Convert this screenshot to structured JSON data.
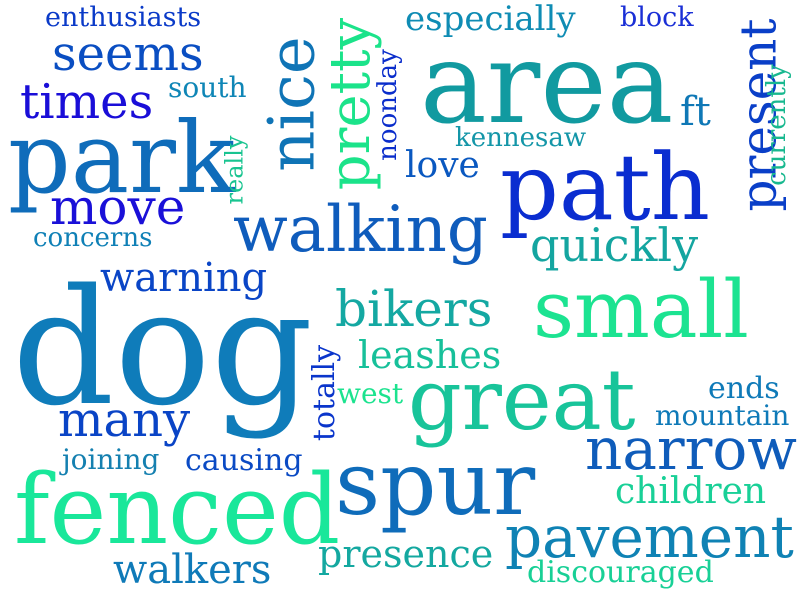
{
  "words": [
    {
      "text": "enthusiasts",
      "color": "#0a3ac8"
    },
    {
      "text": "especially",
      "color": "#0f8cb4"
    },
    {
      "text": "block",
      "color": "#1a2fd6"
    },
    {
      "text": "seems",
      "color": "#0a4ec2"
    },
    {
      "text": "nice",
      "color": "#0f74b6"
    },
    {
      "text": "pretty",
      "color": "#1be38a"
    },
    {
      "text": "noonday",
      "color": "#0a2dcb"
    },
    {
      "text": "area",
      "color": "#119aa0"
    },
    {
      "text": "present",
      "color": "#0a3fc8"
    },
    {
      "text": "currently",
      "color": "#18b88f"
    },
    {
      "text": "times",
      "color": "#1a0ed8"
    },
    {
      "text": "south",
      "color": "#0f86b6"
    },
    {
      "text": "ft",
      "color": "#0f78b6"
    },
    {
      "text": "kennesaw",
      "color": "#1496a8"
    },
    {
      "text": "park",
      "color": "#0f6cba"
    },
    {
      "text": "really",
      "color": "#19c490"
    },
    {
      "text": "love",
      "color": "#0a58c0"
    },
    {
      "text": "path",
      "color": "#0a2dd0"
    },
    {
      "text": "move",
      "color": "#1a10d8"
    },
    {
      "text": "walking",
      "color": "#0f5cbc"
    },
    {
      "text": "quickly",
      "color": "#14a5a0"
    },
    {
      "text": "concerns",
      "color": "#0f80b6"
    },
    {
      "text": "warning",
      "color": "#0a45c6"
    },
    {
      "text": "bikers",
      "color": "#14a8a2"
    },
    {
      "text": "small",
      "color": "#1ce391"
    },
    {
      "text": "dog",
      "color": "#0f7cba"
    },
    {
      "text": "leashes",
      "color": "#17c09a"
    },
    {
      "text": "totally",
      "color": "#0a35cb"
    },
    {
      "text": "west",
      "color": "#1ce38f"
    },
    {
      "text": "great",
      "color": "#18c49a"
    },
    {
      "text": "ends",
      "color": "#0f7ab8"
    },
    {
      "text": "many",
      "color": "#0a44c6"
    },
    {
      "text": "mountain",
      "color": "#0f7ab8"
    },
    {
      "text": "narrow",
      "color": "#0f5cba"
    },
    {
      "text": "joining",
      "color": "#1580b0"
    },
    {
      "text": "causing",
      "color": "#0a4ac4"
    },
    {
      "text": "spur",
      "color": "#0f6cba"
    },
    {
      "text": "children",
      "color": "#19d097"
    },
    {
      "text": "fenced",
      "color": "#19e79a"
    },
    {
      "text": "pavement",
      "color": "#0f82b4"
    },
    {
      "text": "presence",
      "color": "#14a8a0"
    },
    {
      "text": "walkers",
      "color": "#0f7ab8"
    },
    {
      "text": "discouraged",
      "color": "#18d096"
    }
  ]
}
